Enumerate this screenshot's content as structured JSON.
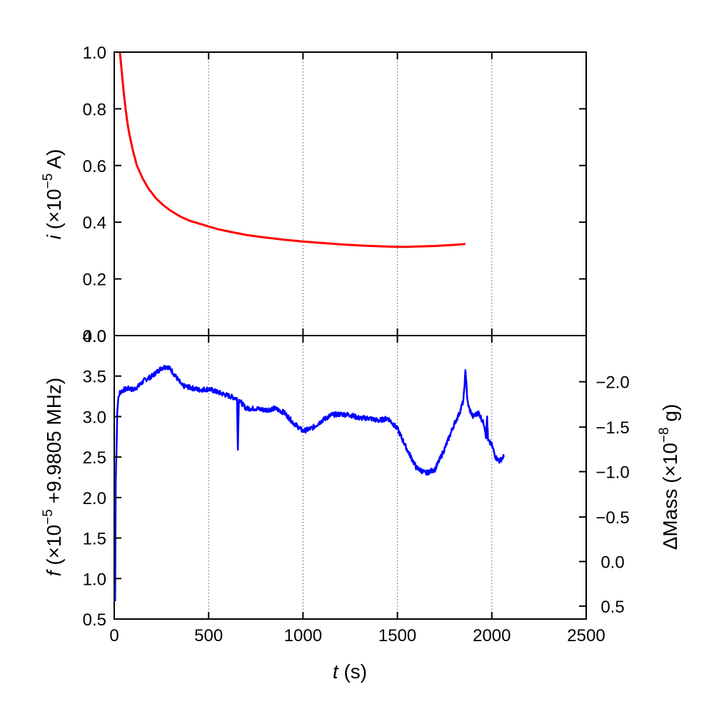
{
  "chart_data": [
    {
      "type": "line",
      "panel": "top",
      "ylabel": {
        "var": "i",
        "text": " (×10",
        "exp": "−5",
        "unit": " A)"
      },
      "xlim": [
        0,
        2500
      ],
      "ylim": [
        0.0,
        1.0
      ],
      "xticks": [
        0,
        500,
        1000,
        1500,
        2000,
        2500
      ],
      "yticks": [
        0.0,
        0.2,
        0.4,
        0.6,
        0.8,
        1.0
      ],
      "yticklabels": [
        "0.0",
        "0.2",
        "0.4",
        "0.6",
        "0.8",
        "1.0"
      ],
      "grid": "vertical dotted",
      "series": [
        {
          "color": "#ff0000",
          "x": [
            30,
            40,
            50,
            60,
            70,
            80,
            100,
            120,
            150,
            180,
            220,
            260,
            300,
            350,
            400,
            450,
            500,
            550,
            600,
            700,
            800,
            900,
            1000,
            1100,
            1200,
            1300,
            1400,
            1500,
            1550,
            1600,
            1700,
            1800,
            1860
          ],
          "y": [
            1.0,
            0.93,
            0.86,
            0.8,
            0.75,
            0.71,
            0.65,
            0.6,
            0.555,
            0.52,
            0.485,
            0.46,
            0.44,
            0.42,
            0.405,
            0.395,
            0.385,
            0.375,
            0.368,
            0.355,
            0.346,
            0.338,
            0.332,
            0.327,
            0.322,
            0.318,
            0.315,
            0.313,
            0.313,
            0.314,
            0.316,
            0.32,
            0.323
          ]
        }
      ]
    },
    {
      "type": "line",
      "panel": "bottom",
      "xlabel": {
        "var": "t",
        "text": " (s)"
      },
      "ylabel": {
        "var": "f",
        "text": " (×10",
        "exp": "−5",
        "unit": " +9.9805 MHz)"
      },
      "y2label": {
        "text": "ΔMass (×10",
        "exp": "−8",
        "unit": " g)"
      },
      "xlim": [
        0,
        2500
      ],
      "ylim": [
        0.5,
        4.0
      ],
      "xticks": [
        0,
        500,
        1000,
        1500,
        2000,
        2500
      ],
      "xticklabels": [
        "0",
        "500",
        "1000",
        "1500",
        "2000",
        "2500"
      ],
      "yticks": [
        0.5,
        1.0,
        1.5,
        2.0,
        2.5,
        3.0,
        3.5,
        4.0
      ],
      "yticklabels": [
        "0.5",
        "1.0",
        "1.5",
        "2.0",
        "2.5",
        "3.0",
        "3.5",
        "4.0"
      ],
      "y2ticks": [
        {
          "label": "−2.0",
          "at": 3.43
        },
        {
          "label": "−1.5",
          "at": 2.87
        },
        {
          "label": "−1.0",
          "at": 2.32
        },
        {
          "label": "−0.5",
          "at": 1.76
        },
        {
          "label": "0.0",
          "at": 1.21
        },
        {
          "label": "0.5",
          "at": 0.66
        }
      ],
      "grid": "vertical dotted",
      "series": [
        {
          "color": "#0000ff",
          "noise": 0.03,
          "x": [
            5,
            8,
            12,
            16,
            20,
            30,
            50,
            80,
            100,
            130,
            160,
            200,
            250,
            280,
            300,
            330,
            360,
            400,
            450,
            500,
            550,
            600,
            640,
            650,
            655,
            660,
            665,
            670,
            680,
            700,
            750,
            800,
            850,
            900,
            950,
            1000,
            1050,
            1100,
            1150,
            1200,
            1250,
            1300,
            1350,
            1400,
            1450,
            1500,
            1550,
            1600,
            1650,
            1700,
            1750,
            1800,
            1830,
            1850,
            1860,
            1865,
            1870,
            1880,
            1900,
            1930,
            1960,
            1970,
            1975,
            1980,
            2000,
            2020,
            2040,
            2060,
            2065
          ],
          "y": [
            0.72,
            2.2,
            2.6,
            3.05,
            3.2,
            3.3,
            3.33,
            3.35,
            3.33,
            3.38,
            3.45,
            3.5,
            3.6,
            3.62,
            3.58,
            3.48,
            3.38,
            3.36,
            3.33,
            3.34,
            3.3,
            3.26,
            3.23,
            3.22,
            2.62,
            3.2,
            3.2,
            3.18,
            3.15,
            3.1,
            3.1,
            3.08,
            3.1,
            3.05,
            2.92,
            2.82,
            2.86,
            2.95,
            3.02,
            3.03,
            3.02,
            2.98,
            2.98,
            2.95,
            2.98,
            2.85,
            2.6,
            2.37,
            2.3,
            2.35,
            2.6,
            2.9,
            3.05,
            3.2,
            3.55,
            3.45,
            3.2,
            3.1,
            3.0,
            3.05,
            2.9,
            2.75,
            3.0,
            2.7,
            2.65,
            2.5,
            2.45,
            2.5,
            2.5
          ]
        }
      ]
    }
  ]
}
